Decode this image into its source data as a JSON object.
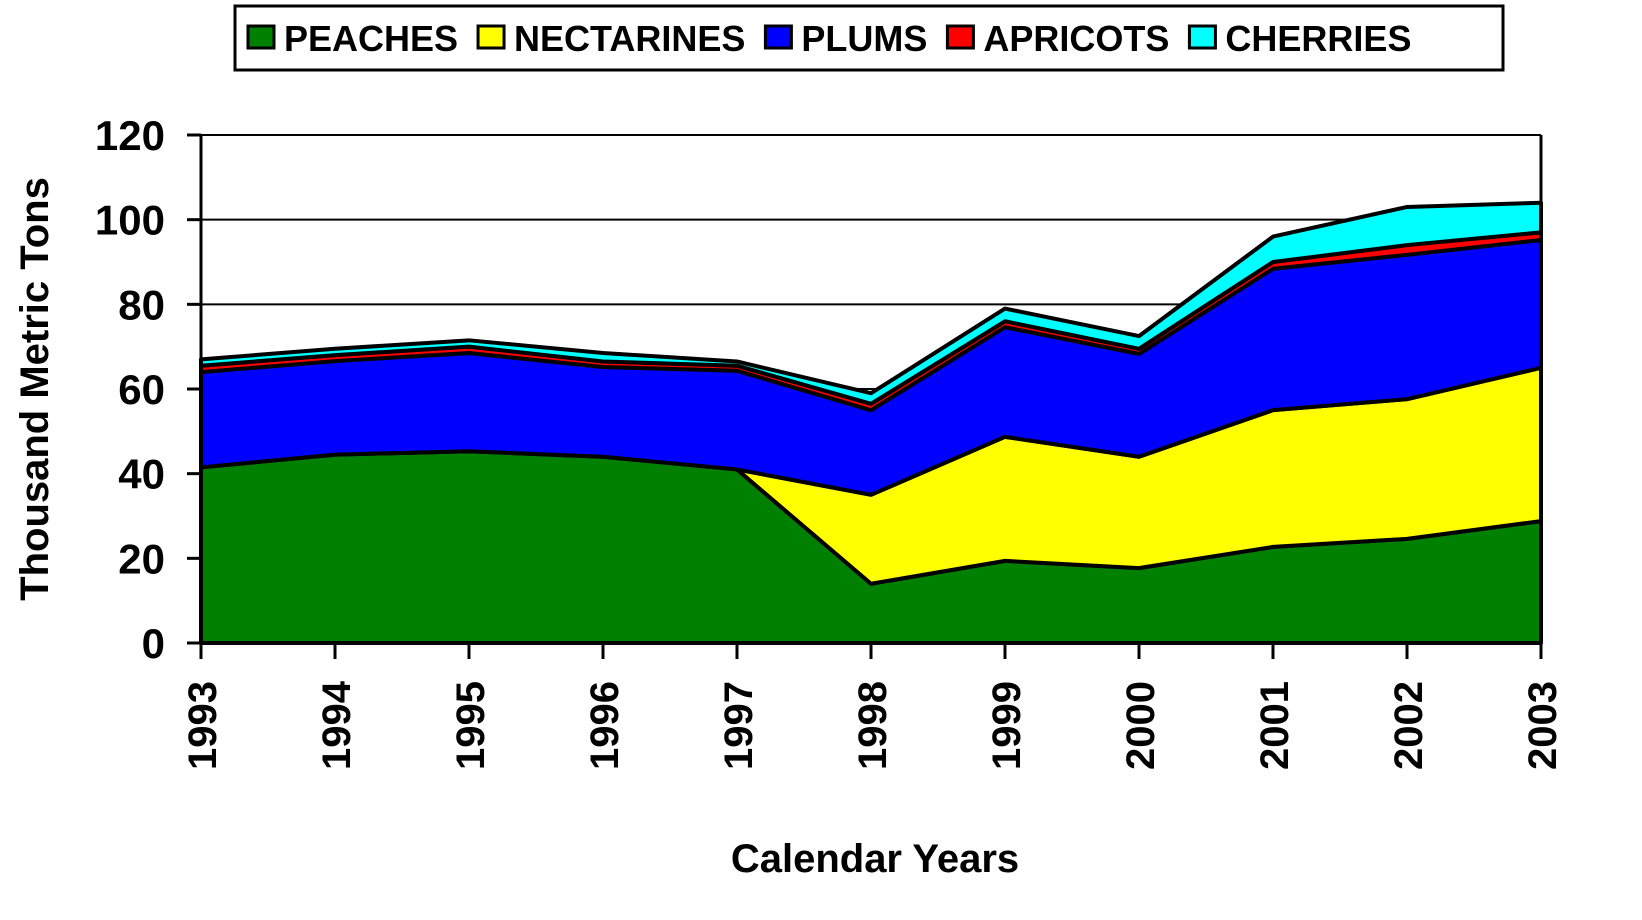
{
  "chart_data": {
    "type": "stacked_area",
    "xlabel": "Calendar Years",
    "ylabel": "Thousand Metric Tons",
    "categories": [
      "1993",
      "1994",
      "1995",
      "1996",
      "1997",
      "1998",
      "1999",
      "2000",
      "2001",
      "2002",
      "2003"
    ],
    "series": [
      {
        "name": "PEACHES",
        "color": "#008000",
        "values": [
          41.5,
          44.5,
          45.3,
          44,
          41,
          14,
          19.4,
          17.7,
          22.7,
          24.6,
          28.8
        ]
      },
      {
        "name": "NECTARINES",
        "color": "#ffff00",
        "values": [
          0,
          0,
          0,
          0,
          0,
          21,
          29.3,
          26.3,
          32.3,
          33,
          36.2
        ]
      },
      {
        "name": "PLUMS",
        "color": "#0000ff",
        "values": [
          22.5,
          22.1,
          23.2,
          21.2,
          23.3,
          20,
          25.9,
          24.3,
          33.4,
          34.1,
          30.2
        ]
      },
      {
        "name": "APRICOTS",
        "color": "#ff0000",
        "values": [
          1.5,
          1.4,
          1.5,
          1.3,
          1.2,
          1.5,
          1.4,
          1.2,
          1.6,
          2.3,
          1.8
        ]
      },
      {
        "name": "CHERRIES",
        "color": "#00ffff",
        "values": [
          1.5,
          1.5,
          1.5,
          2,
          1,
          2.5,
          3,
          3,
          6,
          9,
          7
        ]
      }
    ],
    "ylim": [
      0,
      120
    ],
    "yticks": [
      0,
      20,
      40,
      60,
      80,
      100,
      120
    ],
    "grid": true,
    "legend": "top"
  }
}
